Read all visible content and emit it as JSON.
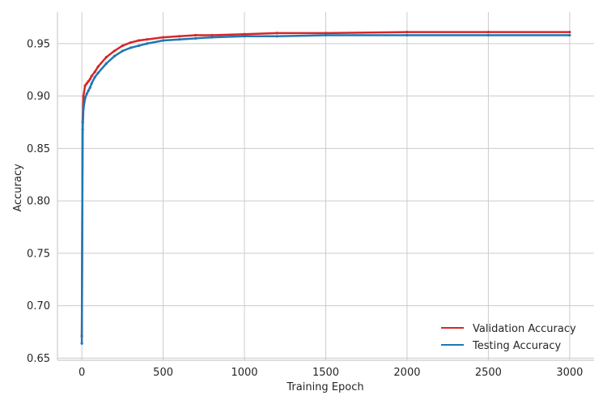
{
  "chart_data": {
    "type": "line",
    "title": "",
    "xlabel": "Training Epoch",
    "ylabel": "Accuracy",
    "xlim": [
      -150,
      3150
    ],
    "ylim": [
      0.648,
      0.98
    ],
    "x_ticks": [
      0,
      500,
      1000,
      1500,
      2000,
      2500,
      3000
    ],
    "y_ticks": [
      0.65,
      0.7,
      0.75,
      0.8,
      0.85,
      0.9,
      0.95
    ],
    "grid": true,
    "legend_position": "bottom-right",
    "series": [
      {
        "name": "Validation Accuracy",
        "color": "#d62728",
        "x": [
          0,
          5,
          10,
          20,
          30,
          40,
          50,
          60,
          80,
          100,
          150,
          200,
          250,
          300,
          350,
          400,
          500,
          600,
          700,
          800,
          1000,
          1200,
          1500,
          2000,
          2500,
          3000
        ],
        "y": [
          0.671,
          0.875,
          0.9,
          0.91,
          0.912,
          0.914,
          0.916,
          0.919,
          0.923,
          0.928,
          0.937,
          0.943,
          0.948,
          0.951,
          0.953,
          0.954,
          0.956,
          0.957,
          0.958,
          0.958,
          0.959,
          0.96,
          0.96,
          0.961,
          0.961,
          0.961
        ]
      },
      {
        "name": "Testing Accuracy",
        "color": "#1f77b4",
        "x": [
          0,
          5,
          10,
          20,
          30,
          40,
          50,
          60,
          80,
          100,
          150,
          200,
          250,
          300,
          350,
          400,
          500,
          600,
          700,
          800,
          1000,
          1200,
          1500,
          2000,
          2500,
          3000
        ],
        "y": [
          0.664,
          0.868,
          0.888,
          0.898,
          0.902,
          0.905,
          0.908,
          0.912,
          0.918,
          0.922,
          0.931,
          0.938,
          0.943,
          0.946,
          0.948,
          0.95,
          0.953,
          0.954,
          0.955,
          0.956,
          0.957,
          0.957,
          0.958,
          0.958,
          0.958,
          0.958
        ]
      }
    ]
  }
}
